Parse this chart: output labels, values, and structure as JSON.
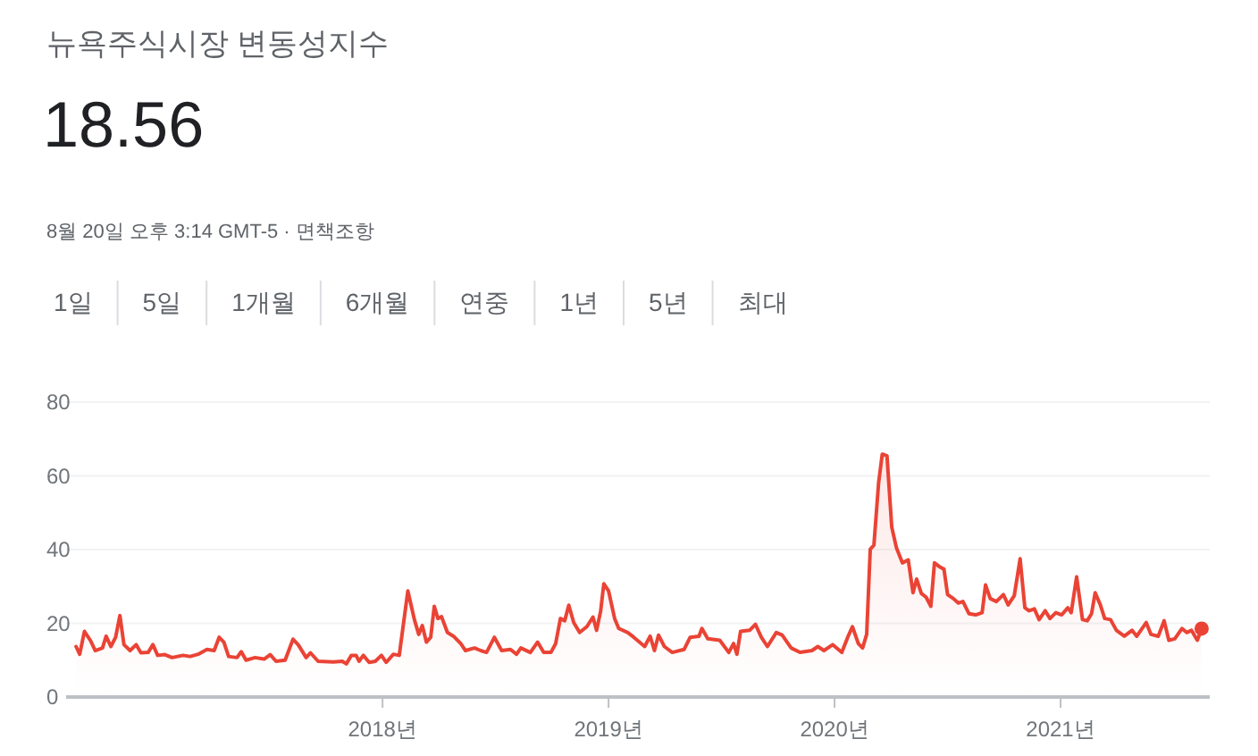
{
  "chart_data": {
    "type": "area",
    "title": "뉴욕주식시장 변동성지수",
    "subtitle": "18.56",
    "annotations": [
      "8월 20일 오후 3:14 GMT-5 · 면책조항",
      "1일",
      "5일",
      "1개월",
      "6개월",
      "연중",
      "1년",
      "5년",
      "최대"
    ],
    "x": [
      2016.644,
      2016.66,
      2016.681,
      2016.707,
      2016.729,
      2016.761,
      2016.777,
      2016.798,
      2016.819,
      2016.838,
      2016.856,
      2016.883,
      2016.91,
      2016.931,
      2016.963,
      2016.984,
      2017.005,
      2017.037,
      2017.069,
      2017.117,
      2017.149,
      2017.184,
      2017.223,
      2017.255,
      2017.277,
      2017.298,
      2017.319,
      2017.356,
      2017.375,
      2017.396,
      2017.436,
      2017.476,
      2017.503,
      2017.529,
      2017.569,
      2017.604,
      2017.628,
      2017.662,
      2017.681,
      2017.715,
      2017.782,
      2017.822,
      2017.84,
      2017.862,
      2017.883,
      2017.896,
      2017.915,
      2017.941,
      2017.968,
      2017.995,
      2018.016,
      2018.048,
      2018.074,
      2018.112,
      2018.141,
      2018.16,
      2018.176,
      2018.194,
      2018.213,
      2018.229,
      2018.245,
      2018.261,
      2018.287,
      2018.314,
      2018.346,
      2018.367,
      2018.407,
      2018.434,
      2018.46,
      2018.495,
      2018.527,
      2018.566,
      2018.593,
      2018.612,
      2018.654,
      2018.686,
      2018.713,
      2018.745,
      2018.766,
      2018.787,
      2018.806,
      2018.824,
      2018.846,
      2018.872,
      2018.904,
      2018.931,
      2018.947,
      2018.965,
      2018.979,
      2019.0,
      2019.027,
      2019.045,
      2019.085,
      2019.112,
      2019.16,
      2019.184,
      2019.203,
      2019.221,
      2019.247,
      2019.282,
      2019.334,
      2019.361,
      2019.4,
      2019.413,
      2019.439,
      2019.492,
      2019.532,
      2019.553,
      2019.568,
      2019.584,
      2019.624,
      2019.65,
      2019.676,
      2019.703,
      2019.742,
      2019.768,
      2019.808,
      2019.847,
      2019.9,
      2019.926,
      2019.953,
      2019.992,
      2020.032,
      2020.058,
      2020.079,
      2020.105,
      2020.124,
      2020.142,
      2020.158,
      2020.174,
      2020.195,
      2020.211,
      2020.232,
      2020.253,
      2020.274,
      2020.3,
      2020.326,
      2020.347,
      2020.363,
      2020.384,
      2020.405,
      2020.426,
      2020.442,
      2020.468,
      2020.484,
      2020.5,
      2020.526,
      2020.547,
      2020.568,
      2020.595,
      2020.624,
      2020.653,
      2020.668,
      2020.689,
      2020.716,
      2020.747,
      2020.768,
      2020.795,
      2020.821,
      2020.842,
      2020.861,
      2020.884,
      2020.905,
      2020.932,
      2020.953,
      2020.979,
      2021.005,
      2021.032,
      2021.047,
      2021.071,
      2021.097,
      2021.118,
      2021.137,
      2021.153,
      2021.176,
      2021.195,
      2021.221,
      2021.247,
      2021.282,
      2021.316,
      2021.337,
      2021.379,
      2021.4,
      2021.432,
      2021.458,
      2021.479,
      2021.505,
      2021.537,
      2021.558,
      2021.579,
      2021.605,
      2021.624
    ],
    "series": [
      {
        "color": "#ea4335",
        "values": [
          13.7,
          11.6,
          17.8,
          15.4,
          12.6,
          13.3,
          16.5,
          13.7,
          16.2,
          22.1,
          14.2,
          12.6,
          14.2,
          12.0,
          12.1,
          14.2,
          11.3,
          11.5,
          10.7,
          11.3,
          11.0,
          11.6,
          12.9,
          12.6,
          16.2,
          14.9,
          11.0,
          10.7,
          12.3,
          10.0,
          10.7,
          10.3,
          11.5,
          9.7,
          10.0,
          15.7,
          14.1,
          10.7,
          12.0,
          9.7,
          9.5,
          9.7,
          9.0,
          11.3,
          11.3,
          9.7,
          11.3,
          9.4,
          9.7,
          11.3,
          9.4,
          11.6,
          11.3,
          28.8,
          21.0,
          17.0,
          19.4,
          14.9,
          16.2,
          24.6,
          21.3,
          21.8,
          17.5,
          16.5,
          14.5,
          12.6,
          13.3,
          12.6,
          12.1,
          16.2,
          12.6,
          12.9,
          11.6,
          13.3,
          12.1,
          14.9,
          12.1,
          12.1,
          14.5,
          21.3,
          20.7,
          24.9,
          20.2,
          17.5,
          19.1,
          21.7,
          18.1,
          23.3,
          30.7,
          28.8,
          21.3,
          18.6,
          17.5,
          16.2,
          13.7,
          16.5,
          12.6,
          16.8,
          13.7,
          12.1,
          12.9,
          16.2,
          16.5,
          18.6,
          15.8,
          15.4,
          12.1,
          14.5,
          11.6,
          17.8,
          18.1,
          19.7,
          16.2,
          13.7,
          17.5,
          16.8,
          13.3,
          12.1,
          12.6,
          13.7,
          12.6,
          14.2,
          12.1,
          16.2,
          19.1,
          14.5,
          13.3,
          17.0,
          40.1,
          41.2,
          58.2,
          65.9,
          65.4,
          46.1,
          40.4,
          36.4,
          37.2,
          28.3,
          32.0,
          28.1,
          27.1,
          24.6,
          36.4,
          35.2,
          34.7,
          27.8,
          26.7,
          25.5,
          25.9,
          22.6,
          22.3,
          22.9,
          30.4,
          26.7,
          25.9,
          27.8,
          25.0,
          27.5,
          37.5,
          24.2,
          23.4,
          23.9,
          21.0,
          23.4,
          21.3,
          22.9,
          22.3,
          24.2,
          22.9,
          32.6,
          21.0,
          20.7,
          22.6,
          28.3,
          25.0,
          21.3,
          21.0,
          18.1,
          16.5,
          18.1,
          16.5,
          20.2,
          17.0,
          16.5,
          20.7,
          15.4,
          15.8,
          18.6,
          17.5,
          18.1,
          15.4,
          18.56
        ]
      }
    ],
    "xlim": [
      2016.6,
      2021.66
    ],
    "xticks": [
      {
        "value": 2018,
        "label": "2018년"
      },
      {
        "value": 2019,
        "label": "2019년"
      },
      {
        "value": 2020,
        "label": "2020년"
      },
      {
        "value": 2021,
        "label": "2021년"
      }
    ],
    "ylim": [
      0,
      80
    ],
    "yticks": [
      0,
      20,
      40,
      60,
      80
    ],
    "grid": "y"
  }
}
